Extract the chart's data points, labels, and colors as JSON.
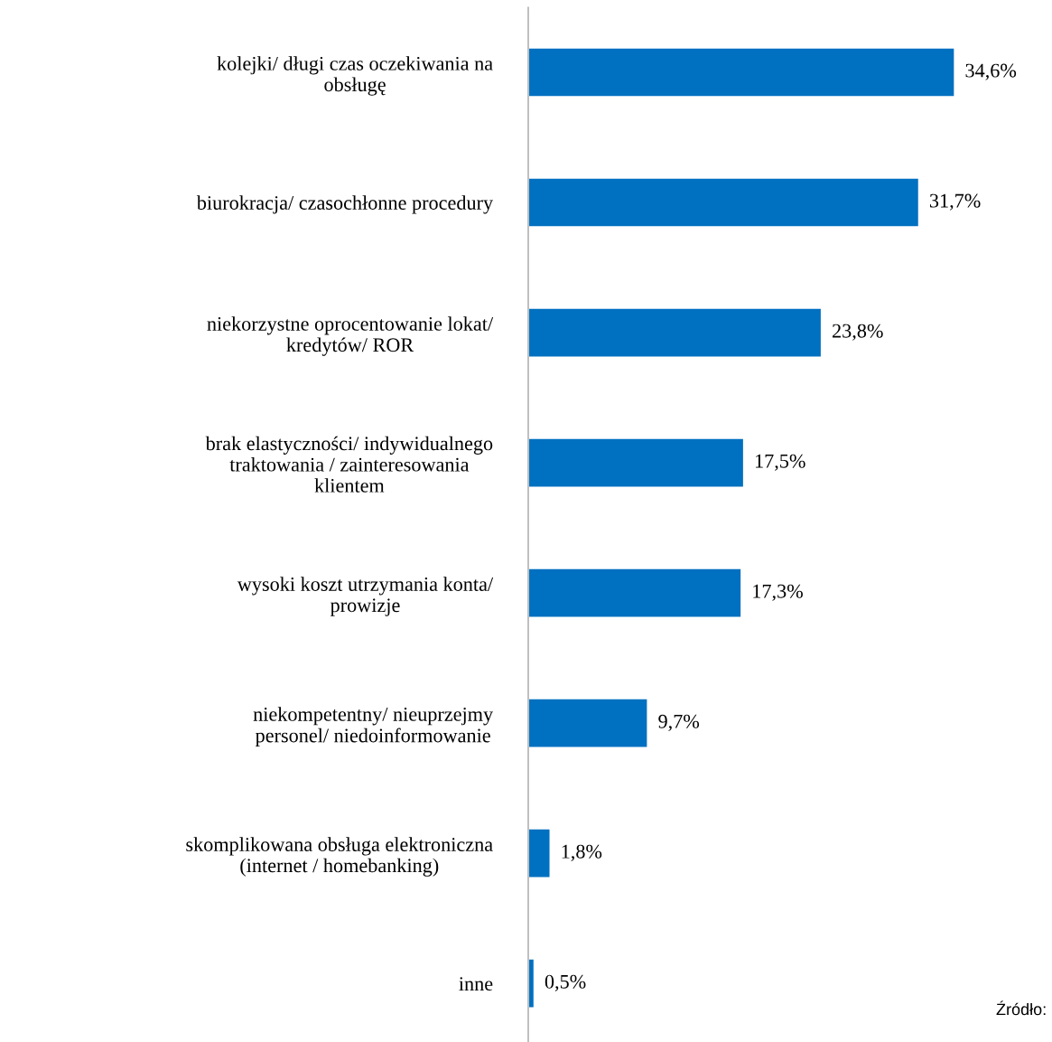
{
  "chart_data": {
    "type": "bar",
    "orientation": "horizontal",
    "categories": [
      "kolejki/ długi czas oczekiwania na\nobsługę",
      "biurokracja/ czasochłonne procedury",
      "niekorzystne oprocentowanie lokat/\nkredytów/ ROR",
      "brak elastyczności/ indywidualnego\ntraktowania / zainteresowania\nklientem",
      "wysoki koszt utrzymania konta/\nprowizje",
      "niekompetentny/ nieuprzejmy\npersonel/ niedoinformowanie",
      "skomplikowana obsługa elektroniczna\n(internet / homebanking)",
      "inne"
    ],
    "values": [
      34.6,
      31.7,
      23.8,
      17.5,
      17.3,
      9.7,
      1.8,
      0.5
    ],
    "value_labels": [
      "34,6%",
      "31,7%",
      "23,8%",
      "17,5%",
      "17,3%",
      "9,7%",
      "1,8%",
      "0,5%"
    ],
    "color": "#0070c0",
    "grid": false,
    "legend": false,
    "annotations": [
      "Źródło:"
    ]
  }
}
